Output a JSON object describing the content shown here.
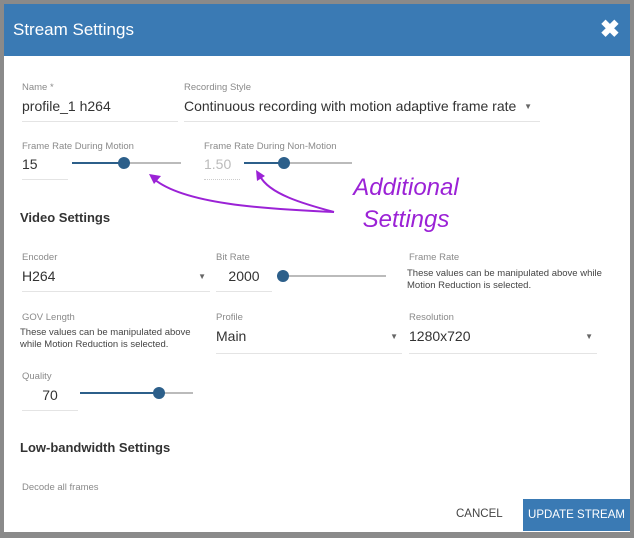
{
  "dialog": {
    "title": "Stream Settings",
    "close_icon": "close-icon"
  },
  "name": {
    "label": "Name *",
    "value": "profile_1 h264"
  },
  "recording_style": {
    "label": "Recording Style",
    "value": "Continuous recording with motion adaptive frame rate"
  },
  "frame_rate_motion": {
    "label": "Frame Rate During Motion",
    "value": "15",
    "slider_percent": 48
  },
  "frame_rate_non_motion": {
    "label": "Frame Rate During Non-Motion",
    "value": "1.50",
    "slider_percent": 37,
    "disabled": true
  },
  "annotation": {
    "line1": "Additional",
    "line2": "Settings",
    "color": "#9b22d6"
  },
  "video_settings": {
    "heading": "Video Settings",
    "encoder": {
      "label": "Encoder",
      "value": "H264"
    },
    "bit_rate": {
      "label": "Bit Rate",
      "value": "2000",
      "slider_percent": 0
    },
    "frame_rate": {
      "label": "Frame Rate",
      "note": "These values can be manipulated above while Motion Reduction is selected."
    },
    "gov_length": {
      "label": "GOV Length",
      "note": "These values can be manipulated above while Motion Reduction is selected."
    },
    "profile": {
      "label": "Profile",
      "value": "Main"
    },
    "resolution": {
      "label": "Resolution",
      "value": "1280x720"
    },
    "quality": {
      "label": "Quality",
      "value": "70",
      "slider_percent": 70
    }
  },
  "low_bandwidth": {
    "heading": "Low-bandwidth Settings",
    "decode_label": "Decode all frames"
  },
  "buttons": {
    "cancel": "CANCEL",
    "update": "UPDATE STREAM"
  },
  "colors": {
    "header": "#3a7ab4",
    "accent": "#2c5f8a"
  }
}
